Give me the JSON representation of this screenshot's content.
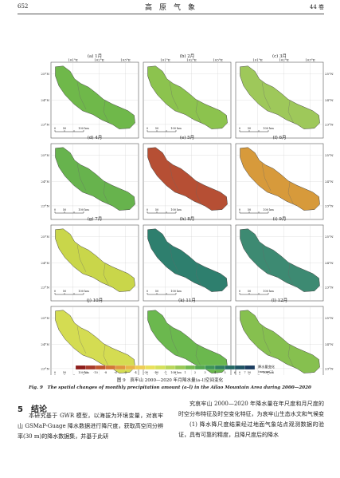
{
  "header": {
    "page_number": "652",
    "journal_title": "高　原　气　象",
    "volume": "44 卷"
  },
  "figure": {
    "panels": [
      {
        "label": "(a) 1月",
        "fill": "#6fb84a"
      },
      {
        "label": "(b) 2月",
        "fill": "#8cc34e"
      },
      {
        "label": "(c) 3月",
        "fill": "#9ec85a"
      },
      {
        "label": "(d) 4月",
        "fill": "#67b34d"
      },
      {
        "label": "(e) 5月",
        "fill": "#b64f34"
      },
      {
        "label": "(f) 6月",
        "fill": "#d79a3b"
      },
      {
        "label": "(g) 7月",
        "fill": "#c9d64a"
      },
      {
        "label": "(h) 8月",
        "fill": "#2e7f6e"
      },
      {
        "label": "(i) 9月",
        "fill": "#3d8a72"
      },
      {
        "label": "(j) 10月",
        "fill": "#d4dc52"
      },
      {
        "label": "(k) 11月",
        "fill": "#6bb84e"
      },
      {
        "label": "(l) 12月",
        "fill": "#86c04f"
      }
    ],
    "lon_ticks": [
      "101°E",
      "102°E",
      "103°E"
    ],
    "lat_ticks": [
      "25°N",
      "24°N",
      "23°N"
    ],
    "scale_bar": [
      "0",
      "50",
      "100 km"
    ],
    "legend_ticks": [
      "-12",
      "-10",
      "-8",
      "-6",
      "-5",
      "-4",
      "-3",
      "-2",
      "-1",
      "0",
      "1",
      "2",
      "3",
      "4",
      "5",
      "6",
      "7"
    ],
    "legend_colors": [
      "#8e1d1b",
      "#a83a2a",
      "#c0562f",
      "#d27537",
      "#df953f",
      "#e8b447",
      "#eecd55",
      "#e9e05a",
      "#d5e05a",
      "#b9d659",
      "#99c954",
      "#74ba4f",
      "#53a84f",
      "#3c9557",
      "#2f805f",
      "#256a64",
      "#1f5464",
      "#1b3d5f"
    ],
    "legend_title": "降水量变化",
    "legend_unit": "(a⁻¹)",
    "legend_unit_main": "(mm·a",
    "caption_cn": "图 9　哀牢山 2000—2020 年月降水量(a–l)空间变化",
    "caption_en": "Fig. 9　The spatial changes of monthly precipitation amount (a–l) in the Ailao Mountain Area during 2000—2020"
  },
  "section": {
    "title": "5　结论"
  },
  "columns": {
    "left": "本研究基于 GWR 模型，以海拔为环境变量，对哀牢山 GSMaP-Guage 降水数据进行降尺度，获取高空间分辨率(30 m)的降水数据集，并基于此研",
    "right": "究哀牢山 2000—2020 年降水量在年尺度和月尺度的时空分布特征及时空变化特征，为哀牢山生态水文和气候变化研究提供关键数据。主要结论如下：",
    "right_item": "(1) 降水降尺度结果经过地面气象站点观测数据的验证，具有可靠的精度，且降尺度后的降水"
  }
}
